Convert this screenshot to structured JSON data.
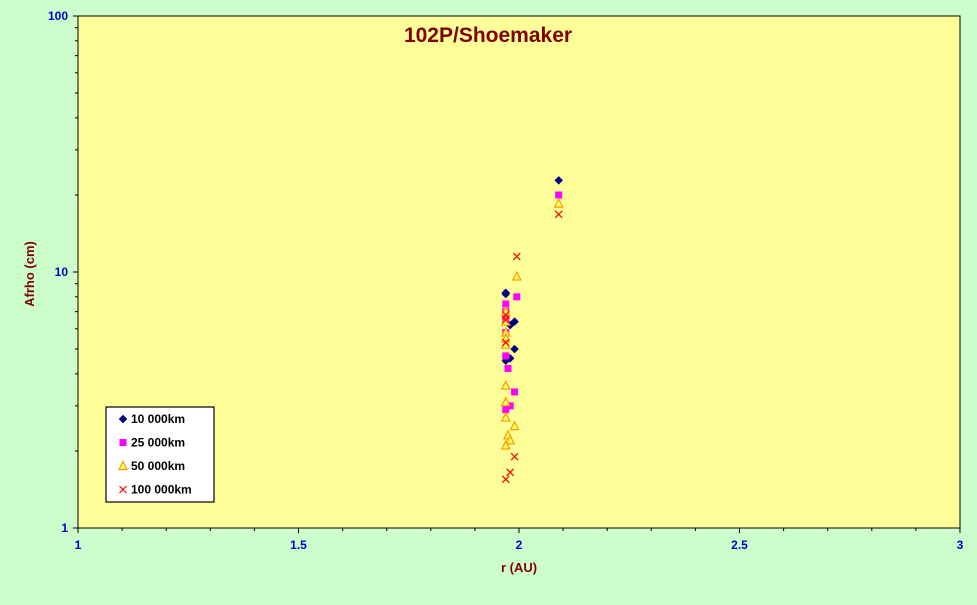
{
  "colors": {
    "page_background": "#ccffcc",
    "plot_background": "#ffff99",
    "title": "#800000",
    "axis_label": "#800000",
    "tick_label": "#0000cc"
  },
  "chart_data": {
    "type": "scatter",
    "title": "102P/Shoemaker",
    "xlabel": "r (AU)",
    "ylabel": "Afrho (cm)",
    "xlim": [
      1,
      3
    ],
    "ylim": [
      1,
      100
    ],
    "y_scale": "log",
    "x_ticks": [
      "1",
      "1.5",
      "2",
      "2.5",
      "3"
    ],
    "y_ticks": [
      "1",
      "10",
      "100"
    ],
    "x_tick_values": [
      1,
      1.5,
      2,
      2.5,
      3
    ],
    "y_tick_values": [
      1,
      10,
      100
    ],
    "grid": false,
    "legend_position": "bottom-left",
    "series": [
      {
        "name": "10 000km",
        "marker": "diamond",
        "color": "#000080",
        "points": [
          [
            1.97,
            8.3
          ],
          [
            1.97,
            8.2
          ],
          [
            1.98,
            6.2
          ],
          [
            1.99,
            6.4
          ],
          [
            1.99,
            5.0
          ],
          [
            1.97,
            4.5
          ],
          [
            1.98,
            4.6
          ],
          [
            2.09,
            22.8
          ]
        ]
      },
      {
        "name": "25 000km",
        "marker": "square",
        "color": "#ff00ff",
        "points": [
          [
            1.97,
            7.5
          ],
          [
            1.97,
            7.0
          ],
          [
            1.97,
            6.6
          ],
          [
            1.97,
            5.8
          ],
          [
            1.97,
            4.7
          ],
          [
            1.975,
            4.2
          ],
          [
            1.99,
            3.4
          ],
          [
            1.98,
            3.0
          ],
          [
            1.97,
            2.9
          ],
          [
            1.995,
            8.0
          ],
          [
            2.09,
            20.0
          ]
        ]
      },
      {
        "name": "50 000km",
        "marker": "triangle",
        "color": "#ff9900",
        "points": [
          [
            1.97,
            7.0
          ],
          [
            1.97,
            6.4
          ],
          [
            1.97,
            5.8
          ],
          [
            1.97,
            5.5
          ],
          [
            1.97,
            5.2
          ],
          [
            1.97,
            3.6
          ],
          [
            1.97,
            3.1
          ],
          [
            1.97,
            2.7
          ],
          [
            1.99,
            2.5
          ],
          [
            1.975,
            2.3
          ],
          [
            1.98,
            2.2
          ],
          [
            1.97,
            2.1
          ],
          [
            1.995,
            9.6
          ],
          [
            2.09,
            18.5
          ]
        ]
      },
      {
        "name": "100 000km",
        "marker": "x",
        "color": "#ff0000",
        "points": [
          [
            1.97,
            6.8
          ],
          [
            1.97,
            6.5
          ],
          [
            1.97,
            5.3
          ],
          [
            1.99,
            1.9
          ],
          [
            1.98,
            1.65
          ],
          [
            1.97,
            1.55
          ],
          [
            1.995,
            11.5
          ],
          [
            2.09,
            16.8
          ]
        ]
      }
    ]
  }
}
